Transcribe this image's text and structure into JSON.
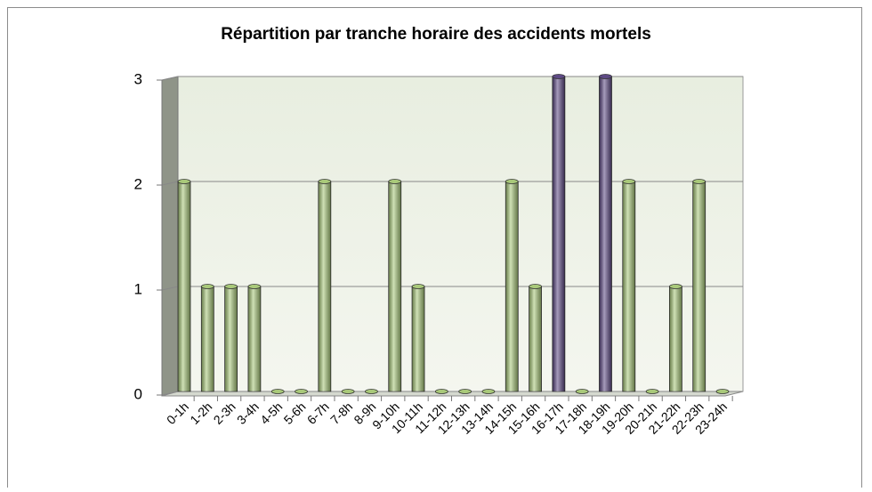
{
  "chart_data": {
    "type": "bar",
    "title": "Répartition par tranche horaire des accidents mortels",
    "categories": [
      "0-1h",
      "1-2h",
      "2-3h",
      "3-4h",
      "4-5h",
      "5-6h",
      "6-7h",
      "7-8h",
      "8-9h",
      "9-10h",
      "10-11h",
      "11-12h",
      "12-13h",
      "13-14h",
      "14-15h",
      "15-16h",
      "16-17h",
      "17-18h",
      "18-19h",
      "19-20h",
      "20-21h",
      "21-22h",
      "22-23h",
      "23-24h"
    ],
    "values": [
      2,
      1,
      1,
      1,
      0,
      0,
      2,
      0,
      0,
      2,
      1,
      0,
      0,
      0,
      2,
      1,
      3,
      0,
      3,
      2,
      0,
      1,
      2,
      0
    ],
    "colors": [
      "#a9c97a",
      "#a9c97a",
      "#a9c97a",
      "#a9c97a",
      "#a9c97a",
      "#a9c97a",
      "#a9c97a",
      "#a9c97a",
      "#a9c97a",
      "#a9c97a",
      "#a9c97a",
      "#a9c97a",
      "#a9c97a",
      "#a9c97a",
      "#a9c97a",
      "#a9c97a",
      "#5e4a85",
      "#a9c97a",
      "#5e4a85",
      "#a9c97a",
      "#a9c97a",
      "#a9c97a",
      "#a9c97a",
      "#a9c97a"
    ],
    "ylim": [
      0,
      3
    ],
    "yticks": [
      0,
      1,
      2,
      3
    ],
    "grid": true
  }
}
